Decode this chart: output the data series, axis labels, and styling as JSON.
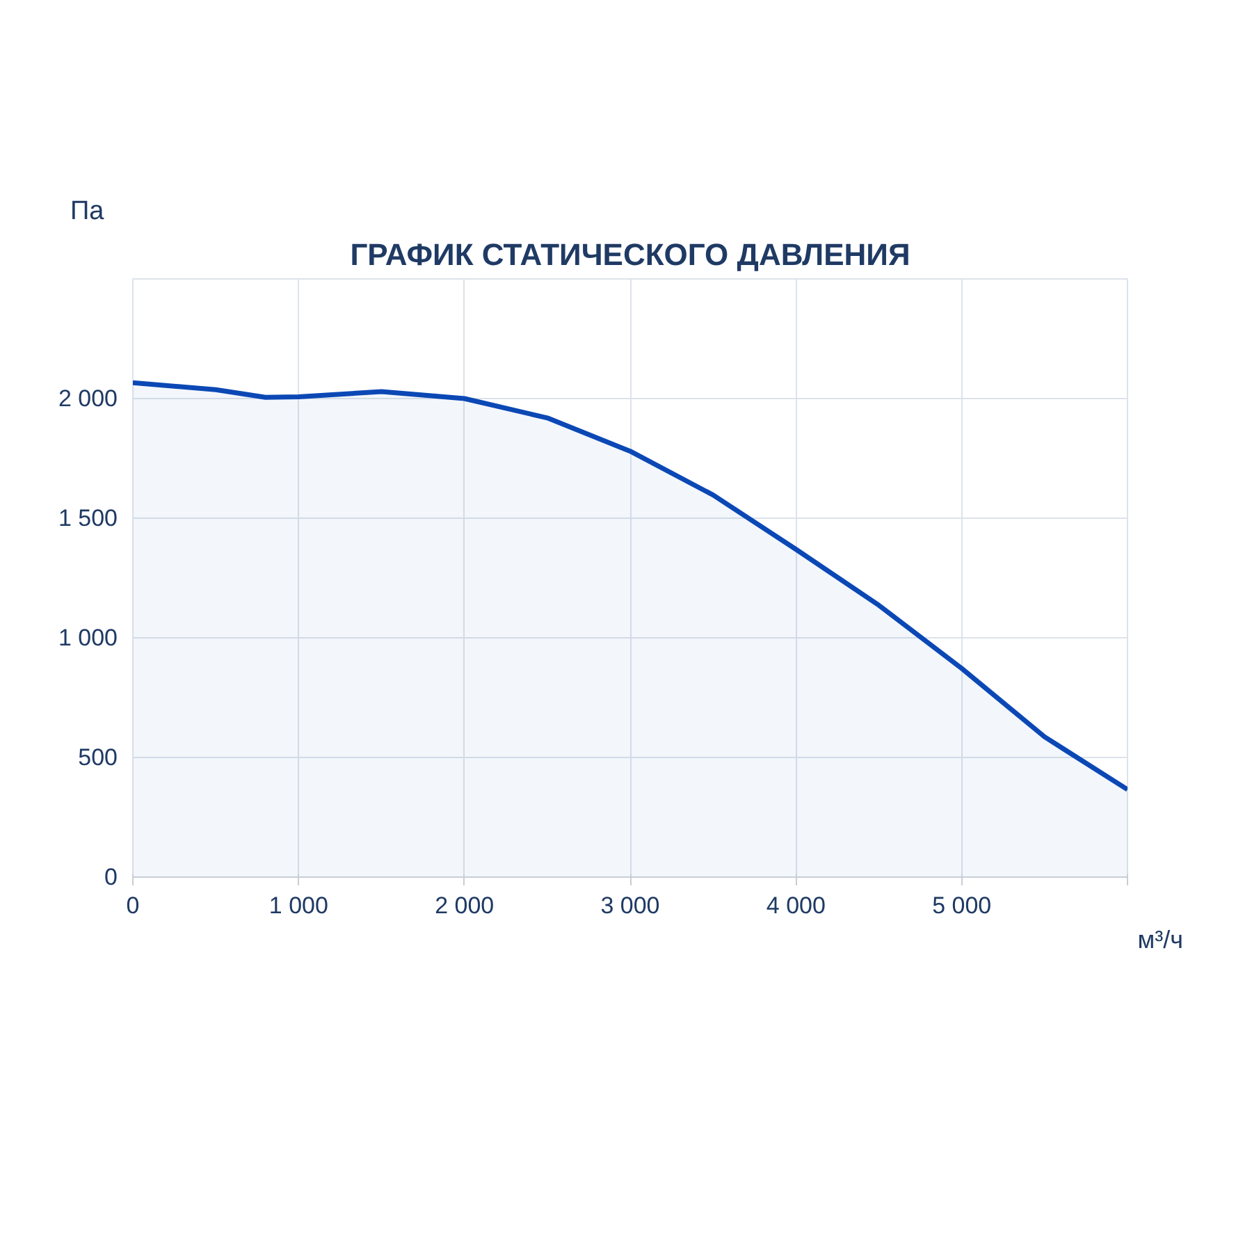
{
  "chart_data": {
    "type": "area",
    "title": "ГРАФИК СТАТИЧЕСКОГО ДАВЛЕНИЯ",
    "xlabel": "м³/ч",
    "ylabel": "Па",
    "x": [
      0,
      500,
      800,
      1000,
      1500,
      2000,
      2500,
      3000,
      3500,
      4000,
      4500,
      5000,
      5500,
      6000
    ],
    "series": [
      {
        "color": "#0b48b5",
        "values": [
          2066,
          2037,
          2005,
          2007,
          2029,
          2000,
          1919,
          1780,
          1597,
          1370,
          1136,
          872,
          586,
          366
        ]
      }
    ],
    "xlim": [
      0,
      6000
    ],
    "ylim": [
      0,
      2500
    ],
    "xticks": [
      0,
      {
        "value": 1000,
        "label": "1 000"
      },
      {
        "value": 2000,
        "label": "2 000"
      },
      {
        "value": 3000,
        "label": "3 000"
      },
      {
        "value": 4000,
        "label": "4 000"
      },
      {
        "value": 5000,
        "label": "5 000"
      },
      {
        "value": 6000,
        "label": null
      }
    ],
    "yticks": [
      0,
      500,
      {
        "value": 1000,
        "label": "1 000"
      },
      {
        "value": 1500,
        "label": "1 500"
      },
      {
        "value": 2000,
        "label": "2 000"
      },
      {
        "value": 2500,
        "label": null
      }
    ],
    "grid": true
  }
}
